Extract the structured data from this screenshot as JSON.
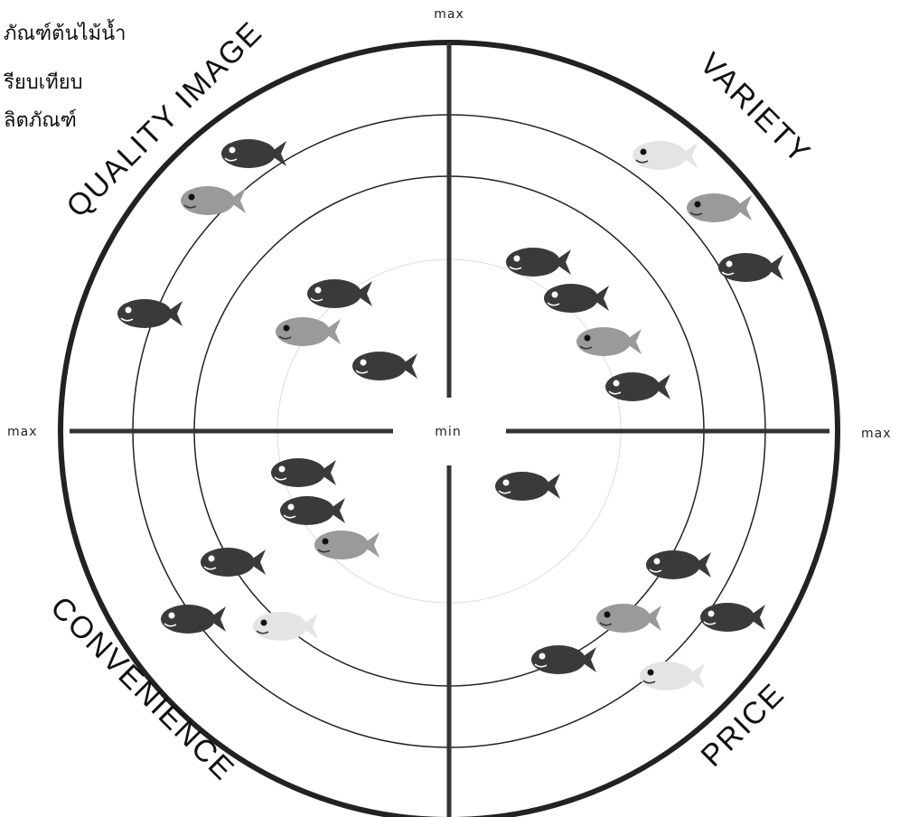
{
  "header": {
    "lines": [
      "ภัณฑ์ต้นไม้น้ำ",
      "รียบเทียบ",
      "ลิตภัณฑ์"
    ]
  },
  "axis": {
    "top": "max",
    "left": "max",
    "right": "max",
    "center": "min"
  },
  "quadrants": {
    "top_left": "QUALITY IMAGE",
    "top_right": "VARIETY",
    "bottom_left": "CONVENIENCE",
    "bottom_right": "PRICE"
  }
}
